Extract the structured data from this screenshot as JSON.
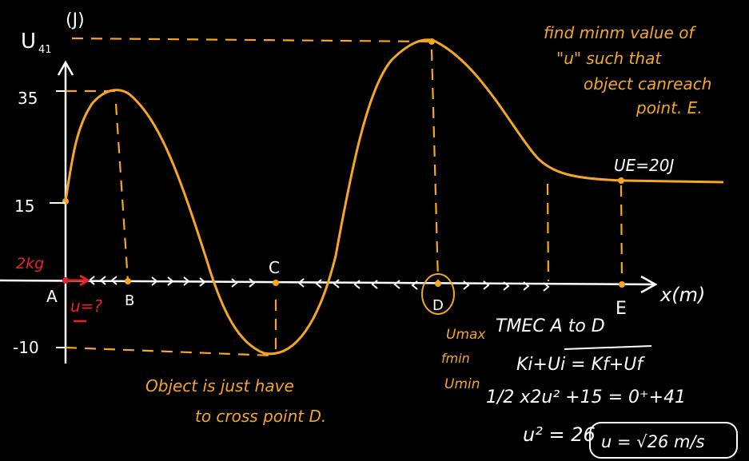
{
  "colors": {
    "background": "#000000",
    "axes": "#ffffff",
    "curve": "#f5a623",
    "highlight": "#e8202a"
  },
  "axes": {
    "y_label": "U",
    "y_subscript": "41",
    "y_unit": "(J)",
    "x_label": "x(m)"
  },
  "ticks": {
    "y35": "35",
    "y15": "15",
    "yneg10": "-10"
  },
  "points": {
    "A": "A",
    "B": "B",
    "C": "C",
    "D": "D",
    "E": "E"
  },
  "mass_label": "2kg",
  "velocity_label": "u=?",
  "ue_label": "UE=20J",
  "question": {
    "line1": "find minm value of",
    "line2": "\"u\" such that",
    "line3": "object canreach",
    "line4": "point. E."
  },
  "note": {
    "line1": "Object is just have",
    "line2": "to cross point D."
  },
  "d_notes": {
    "line1": "Umax",
    "line2": "fmin",
    "line3": "Umin"
  },
  "solution": {
    "title": "TMEC A to D",
    "eq1": "Ki+Ui = Kf+Uf",
    "eq2": "1/2 x2u² +15 = 0⁺+41",
    "eq3": "u² = 26",
    "answer": "u = √26 m/s"
  }
}
